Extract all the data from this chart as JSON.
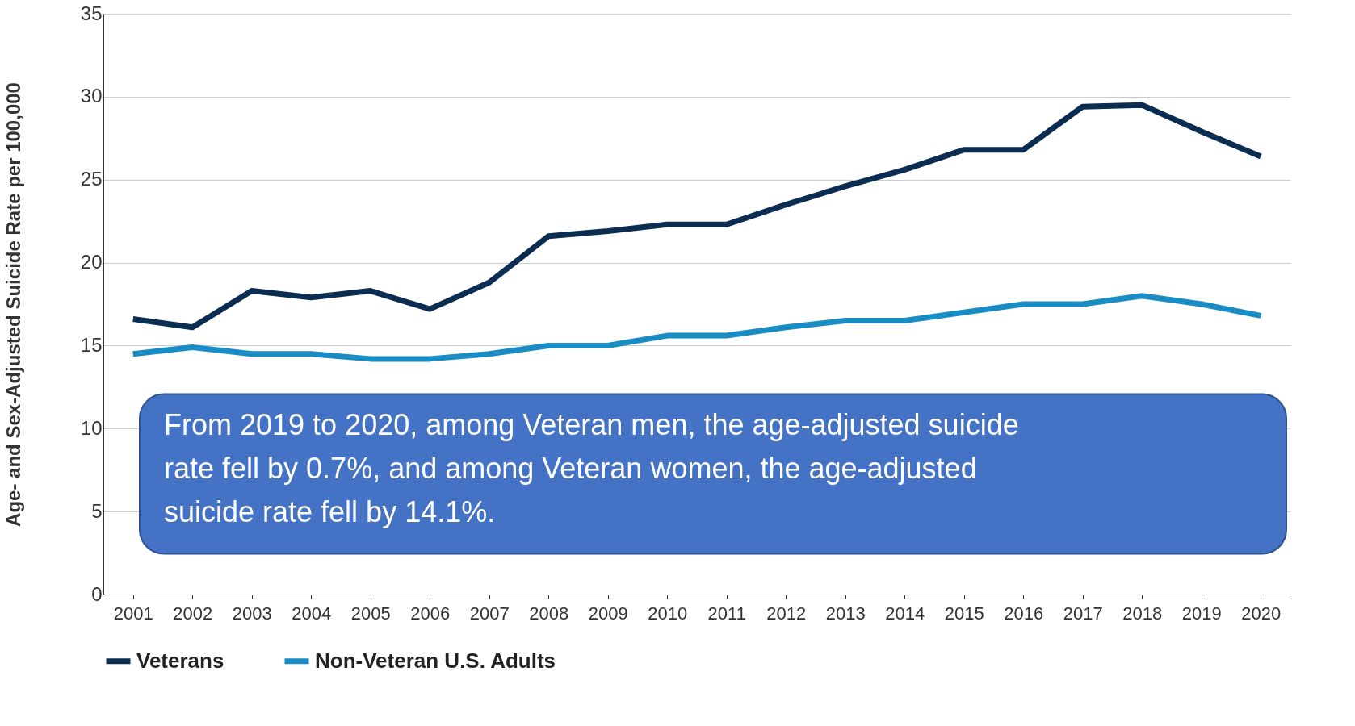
{
  "chart_data": {
    "type": "line",
    "ylabel": "Age- and Sex-Adjusted Suicide Rate per 100,000",
    "categories": [
      "2001",
      "2002",
      "2003",
      "2004",
      "2005",
      "2006",
      "2007",
      "2008",
      "2009",
      "2010",
      "2011",
      "2012",
      "2013",
      "2014",
      "2015",
      "2016",
      "2017",
      "2018",
      "2019",
      "2020"
    ],
    "series": [
      {
        "name": "Veterans",
        "color": "#0b2d52",
        "values": [
          16.6,
          16.1,
          18.3,
          17.9,
          18.3,
          17.2,
          18.8,
          21.6,
          21.9,
          22.3,
          22.3,
          23.5,
          24.6,
          25.6,
          26.8,
          26.8,
          29.4,
          29.5,
          27.9,
          26.4
        ]
      },
      {
        "name": "Non-Veteran U.S. Adults",
        "color": "#1a8cc4",
        "values": [
          14.5,
          14.9,
          14.5,
          14.5,
          14.2,
          14.2,
          14.5,
          15.0,
          15.0,
          15.6,
          15.6,
          16.1,
          16.5,
          16.5,
          17.0,
          17.5,
          17.5,
          18.0,
          17.5,
          16.8
        ]
      }
    ],
    "ylim": [
      0,
      35
    ],
    "yticks": [
      0,
      5,
      10,
      15,
      20,
      25,
      30,
      35
    ],
    "grid": "y",
    "legend": "bottom",
    "marker": "none",
    "line_style": "solid",
    "annotations": [
      "From 2019 to 2020, among Veteran men, the age-adjusted suicide rate fell by 0.7%, and among Veteran women, the age-adjusted suicide rate fell by 14.1%."
    ]
  }
}
